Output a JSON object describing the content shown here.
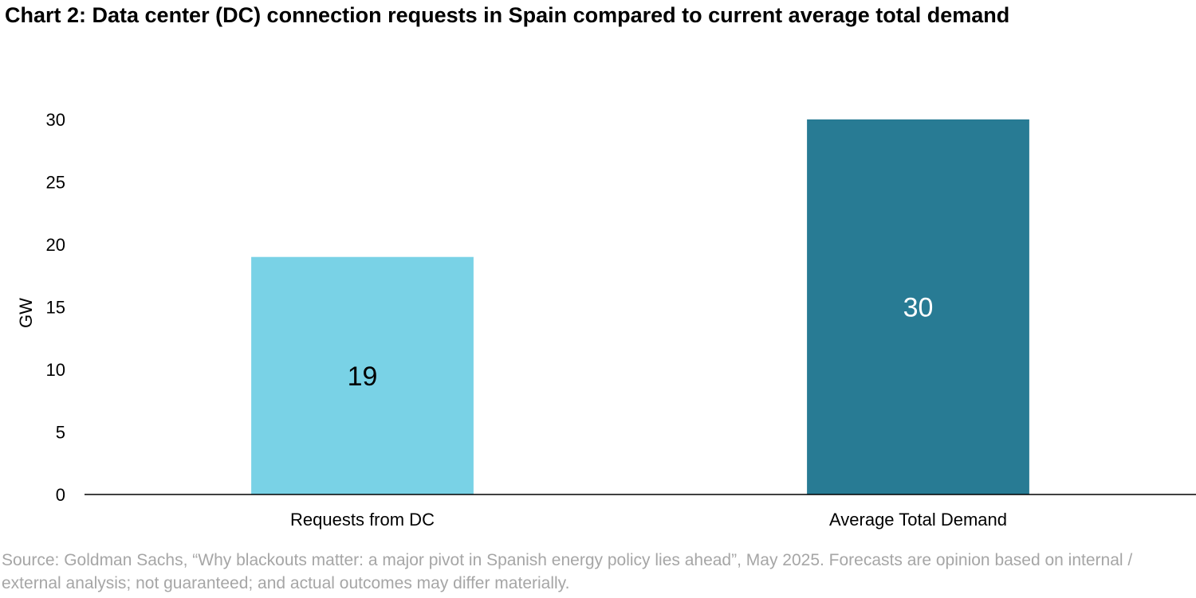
{
  "chart_data": {
    "type": "bar",
    "title": "Chart 2: Data center (DC) connection requests in Spain compared to current average total demand",
    "xlabel": "",
    "ylabel": "GW",
    "categories": [
      "Requests from DC",
      "Average Total Demand"
    ],
    "values": [
      19,
      30
    ],
    "data_labels": [
      "19",
      "30"
    ],
    "bar_colors": [
      "#79d2e6",
      "#287b94"
    ],
    "data_label_colors": [
      "#000000",
      "#ffffff"
    ],
    "ylim": [
      0,
      30
    ],
    "yticks": [
      0,
      5,
      10,
      15,
      20,
      25,
      30
    ],
    "grid": false,
    "legend": "none"
  },
  "source_note": "Source: Goldman Sachs, “Why blackouts matter: a major pivot in Spanish energy policy lies ahead”, May 2025. Forecasts are opinion based on internal / external analysis; not guaranteed; and actual outcomes may differ materially."
}
